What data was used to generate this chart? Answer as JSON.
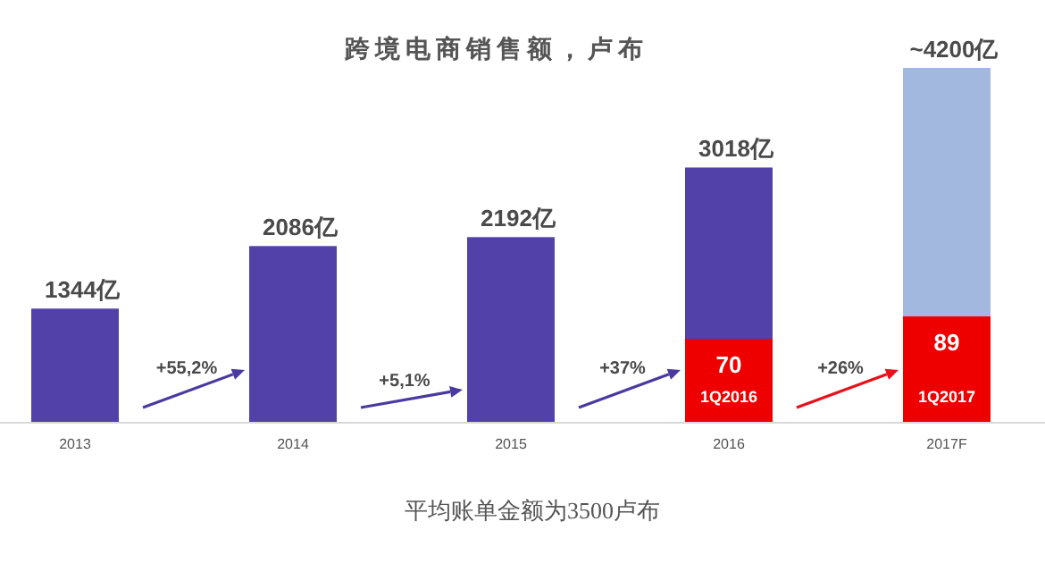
{
  "chart_data": {
    "type": "bar",
    "title": "跨境电商销售额，卢布",
    "categories": [
      "2013",
      "2014",
      "2015",
      "2016",
      "2017F"
    ],
    "series": [
      {
        "colors": [
          "#5141a8",
          "#5141a8",
          "#5141a8",
          "#5141a8",
          "#a3b8df"
        ],
        "values": [
          1344,
          2086,
          2192,
          3018,
          4200
        ],
        "value_labels": [
          "1344亿",
          "2086亿",
          "2192亿",
          "3018亿",
          "~4200亿"
        ]
      },
      {
        "axis": "y2",
        "color": "#ee0000",
        "values": [
          null,
          null,
          null,
          70,
          89
        ],
        "value_labels": [
          null,
          null,
          null,
          "70",
          "89"
        ]
      }
    ],
    "annotations": [
      "+55,2%",
      "+5,1%",
      "+37%",
      "+26%",
      "1Q2016",
      "1Q2017",
      "平均账单金额为3500卢布"
    ]
  }
}
